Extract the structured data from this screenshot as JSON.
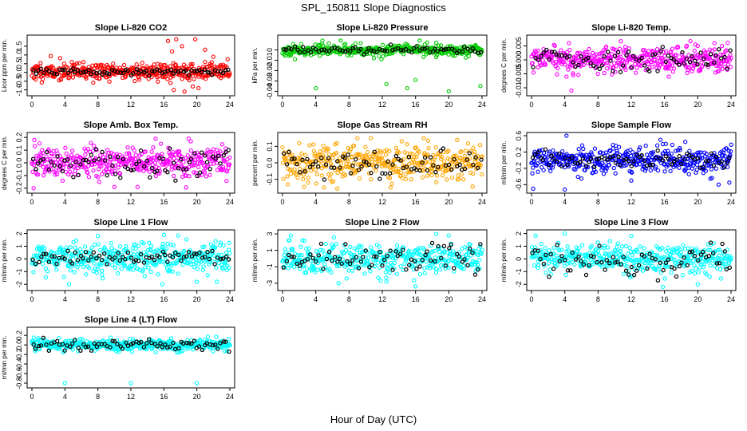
{
  "figure": {
    "title": "SPL_150811  Slope Diagnostics",
    "xlabel": "Hour of Day (UTC)"
  },
  "chart_data": [
    {
      "type": "scatter",
      "title": "Slope Li-820 CO2",
      "ylabel": "Licor ppm per min.",
      "xlim": [
        0,
        24
      ],
      "xticks": [
        0,
        4,
        8,
        12,
        16,
        20,
        24
      ],
      "ylim": [
        -1.2,
        2.0
      ],
      "yticks": [
        "-1.0",
        "-0.5",
        "0.0",
        "0.5",
        "1.0",
        "1.5"
      ],
      "ytick_values": [
        -1.0,
        -0.5,
        0.0,
        0.5,
        1.0,
        1.5
      ],
      "series_color": "#ff0000",
      "highlight_color": "#000000",
      "spread": 0.25,
      "offset": 0.05,
      "hl_spread": 0.1,
      "seed": 11,
      "outliers": [
        {
          "x": 16.5,
          "y": 1.8
        },
        {
          "x": 17.5,
          "y": 1.9
        },
        {
          "x": 18.2,
          "y": 1.5
        },
        {
          "x": 19.8,
          "y": 1.9
        },
        {
          "x": 17.2,
          "y": -1.0
        },
        {
          "x": 18.5,
          "y": -1.1
        },
        {
          "x": 19.5,
          "y": -0.8
        },
        {
          "x": 21.0,
          "y": 1.3
        },
        {
          "x": 20.2,
          "y": -0.9
        },
        {
          "x": 17.0,
          "y": 1.2
        },
        {
          "x": 16.8,
          "y": -0.6
        },
        {
          "x": 22.0,
          "y": 0.9
        }
      ]
    },
    {
      "type": "scatter",
      "title": "Slope Li-820 Pressure",
      "ylabel": "kPa per min.",
      "xlim": [
        0,
        24
      ],
      "xticks": [
        0,
        4,
        8,
        12,
        16,
        20,
        24
      ],
      "ylim": [
        -0.042,
        0.012
      ],
      "yticks": [
        "-0.04",
        "-0.03",
        "-0.02",
        "-0.01",
        "0"
      ],
      "ytick_values": [
        -0.04,
        -0.03,
        -0.02,
        -0.01,
        0.0
      ],
      "series_color": "#00cc00",
      "highlight_color": "#000000",
      "spread": 0.0025,
      "offset": 0.0,
      "hl_spread": 0.0015,
      "seed": 23,
      "outliers": [
        {
          "x": 4.0,
          "y": -0.037
        },
        {
          "x": 4.8,
          "y": 0.009
        },
        {
          "x": 7.0,
          "y": 0.009
        },
        {
          "x": 12.5,
          "y": -0.033
        },
        {
          "x": 16.0,
          "y": -0.029
        },
        {
          "x": 15.0,
          "y": -0.037
        },
        {
          "x": 16.5,
          "y": 0.009
        },
        {
          "x": 20.0,
          "y": -0.04
        },
        {
          "x": 23.8,
          "y": -0.035
        },
        {
          "x": 11.0,
          "y": -0.008
        },
        {
          "x": 18.5,
          "y": 0.007
        },
        {
          "x": 1.5,
          "y": -0.009
        }
      ]
    },
    {
      "type": "scatter",
      "title": "Slope Li-820 Temp.",
      "ylabel": "degrees C per min.",
      "xlim": [
        0,
        24
      ],
      "xticks": [
        0,
        4,
        8,
        12,
        16,
        20,
        24
      ],
      "ylim": [
        -0.012,
        0.008
      ],
      "yticks": [
        "-0.010",
        "-0.005",
        "0.000",
        "0.005"
      ],
      "ytick_values": [
        -0.01,
        -0.005,
        0.0,
        0.005
      ],
      "series_color": "#ff00ff",
      "highlight_color": "#000000",
      "spread": 0.0022,
      "offset": 0.0,
      "hl_spread": 0.002,
      "seed": 37,
      "outliers": [
        {
          "x": 4.5,
          "y": 0.006
        },
        {
          "x": 4.2,
          "y": -0.006
        },
        {
          "x": 4.8,
          "y": -0.011
        },
        {
          "x": 16.5,
          "y": -0.006
        },
        {
          "x": 20.0,
          "y": 0.005
        },
        {
          "x": 22.0,
          "y": 0.006
        },
        {
          "x": 8.0,
          "y": -0.005
        }
      ]
    },
    {
      "type": "scatter",
      "title": "Slope Amb. Box Temp.",
      "ylabel": "degrees C per min.",
      "xlim": [
        0,
        24
      ],
      "xticks": [
        0,
        4,
        8,
        12,
        16,
        20,
        24
      ],
      "ylim": [
        -0.22,
        0.22
      ],
      "yticks": [
        "-0.2",
        "-0.1",
        "0.0",
        "0.1",
        "0.2"
      ],
      "ytick_values": [
        -0.2,
        -0.1,
        0.0,
        0.1,
        0.2
      ],
      "series_color": "#ff00ff",
      "highlight_color": "#000000",
      "spread": 0.06,
      "offset": 0.0,
      "hl_spread": 0.06,
      "seed": 41,
      "outliers": [
        {
          "x": 0.2,
          "y": -0.2
        },
        {
          "x": 0.3,
          "y": 0.18
        },
        {
          "x": 10.0,
          "y": -0.19
        },
        {
          "x": 15.0,
          "y": 0.19
        },
        {
          "x": 19.0,
          "y": 0.19
        },
        {
          "x": 12.8,
          "y": -0.19
        }
      ]
    },
    {
      "type": "scatter",
      "title": "Slope Gas Stream RH",
      "ylabel": "percent per min.",
      "xlim": [
        0,
        24
      ],
      "xticks": [
        0,
        4,
        8,
        12,
        16,
        20,
        24
      ],
      "ylim": [
        -0.17,
        0.17
      ],
      "yticks": [
        "-0.1",
        "0.0",
        "0.1"
      ],
      "ytick_values": [
        -0.1,
        0.0,
        0.1
      ],
      "series_color": "#ffa500",
      "highlight_color": "#000000",
      "spread": 0.055,
      "offset": 0.0,
      "hl_spread": 0.04,
      "seed": 53,
      "outliers": [
        {
          "x": 9.0,
          "y": 0.15
        },
        {
          "x": 17.0,
          "y": 0.15
        },
        {
          "x": 5.0,
          "y": -0.15
        },
        {
          "x": 13.0,
          "y": -0.15
        },
        {
          "x": 21.0,
          "y": 0.14
        }
      ]
    },
    {
      "type": "scatter",
      "title": "Slope Sample Flow",
      "ylabel": "ml/min per min.",
      "xlim": [
        0,
        24
      ],
      "xticks": [
        0,
        4,
        8,
        12,
        16,
        20,
        24
      ],
      "ylim": [
        -0.75,
        0.62
      ],
      "yticks": [
        "-0.6",
        "-0.2",
        "0.2",
        "0.6"
      ],
      "ytick_values": [
        -0.6,
        -0.2,
        0.2,
        0.6
      ],
      "series_color": "#0000ff",
      "highlight_color": "#000000",
      "spread": 0.14,
      "offset": 0.0,
      "hl_spread": 0.1,
      "seed": 67,
      "outliers": [
        {
          "x": 0.2,
          "y": -0.7
        },
        {
          "x": 4.0,
          "y": -0.72
        },
        {
          "x": 4.2,
          "y": 0.6
        },
        {
          "x": 15.5,
          "y": 0.5
        },
        {
          "x": 23.8,
          "y": -0.55
        },
        {
          "x": 6.0,
          "y": -0.45
        },
        {
          "x": 12.0,
          "y": -0.5
        },
        {
          "x": 18.5,
          "y": 0.45
        },
        {
          "x": 22.5,
          "y": -0.6
        }
      ]
    },
    {
      "type": "scatter",
      "title": "Slope Line 1 Flow",
      "ylabel": "ml/min per min.",
      "xlim": [
        0,
        24
      ],
      "xticks": [
        0,
        4,
        8,
        12,
        16,
        20,
        24
      ],
      "ylim": [
        -2.3,
        2.1
      ],
      "yticks": [
        "-2",
        "-1",
        "0",
        "1",
        "2"
      ],
      "ytick_values": [
        -2,
        -1,
        0,
        1,
        2
      ],
      "series_color": "#00ffff",
      "highlight_color": "#000000",
      "spread": 0.6,
      "offset": 0.1,
      "hl_spread": 0.2,
      "seed": 71,
      "outliers": [
        {
          "x": 15.8,
          "y": -2.0
        },
        {
          "x": 16.0,
          "y": 1.9
        },
        {
          "x": 4.5,
          "y": -2.0
        },
        {
          "x": 8.0,
          "y": 1.8
        },
        {
          "x": 20.0,
          "y": -1.8
        }
      ]
    },
    {
      "type": "scatter",
      "title": "Slope Line 2 Flow",
      "ylabel": "ml/min per min.",
      "xlim": [
        0,
        24
      ],
      "xticks": [
        0,
        4,
        8,
        12,
        16,
        20,
        24
      ],
      "ylim": [
        -3.6,
        3.2
      ],
      "yticks": [
        "-3",
        "-1",
        "1",
        "3"
      ],
      "ytick_values": [
        -3,
        -1,
        1,
        3
      ],
      "series_color": "#00ffff",
      "highlight_color": "#000000",
      "spread": 0.9,
      "offset": 0.0,
      "hl_spread": 0.9,
      "seed": 83,
      "outliers": [
        {
          "x": 1.0,
          "y": 2.8
        },
        {
          "x": 16.0,
          "y": -3.4
        },
        {
          "x": 18.5,
          "y": 3.0
        },
        {
          "x": 12.5,
          "y": -2.8
        },
        {
          "x": 20.0,
          "y": 2.8
        }
      ]
    },
    {
      "type": "scatter",
      "title": "Slope Line 3 Flow",
      "ylabel": "ml/min per min.",
      "xlim": [
        0,
        24
      ],
      "xticks": [
        0,
        4,
        8,
        12,
        16,
        20,
        24
      ],
      "ylim": [
        -2.3,
        2.1
      ],
      "yticks": [
        "-2",
        "-1",
        "0",
        "1",
        "2"
      ],
      "ytick_values": [
        -2,
        -1,
        0,
        1,
        2
      ],
      "series_color": "#00ffff",
      "highlight_color": "#000000",
      "spread": 0.6,
      "offset": 0.0,
      "hl_spread": 0.7,
      "seed": 97,
      "outliers": [
        {
          "x": 4.0,
          "y": 2.0
        },
        {
          "x": 15.8,
          "y": -2.2
        },
        {
          "x": 20.0,
          "y": -2.0
        },
        {
          "x": 12.0,
          "y": 1.8
        }
      ]
    },
    {
      "type": "scatter",
      "title": "Slope Line 4 (LT) Flow",
      "ylabel": "ml/min per min.",
      "xlim": [
        0,
        24
      ],
      "xticks": [
        0,
        4,
        8,
        12,
        16,
        20,
        24
      ],
      "ylim": [
        -0.85,
        0.32
      ],
      "yticks": [
        "-0.8",
        "-0.6",
        "-0.4",
        "-0.2",
        "0.0",
        "0.2"
      ],
      "ytick_values": [
        -0.8,
        -0.6,
        -0.4,
        -0.2,
        0.0,
        0.2
      ],
      "series_color": "#00ffff",
      "highlight_color": "#000000",
      "spread": 0.06,
      "offset": 0.0,
      "hl_spread": 0.06,
      "seed": 101,
      "outliers": [
        {
          "x": 4.0,
          "y": -0.8
        },
        {
          "x": 12.0,
          "y": -0.8
        },
        {
          "x": 20.0,
          "y": -0.8
        }
      ]
    }
  ]
}
